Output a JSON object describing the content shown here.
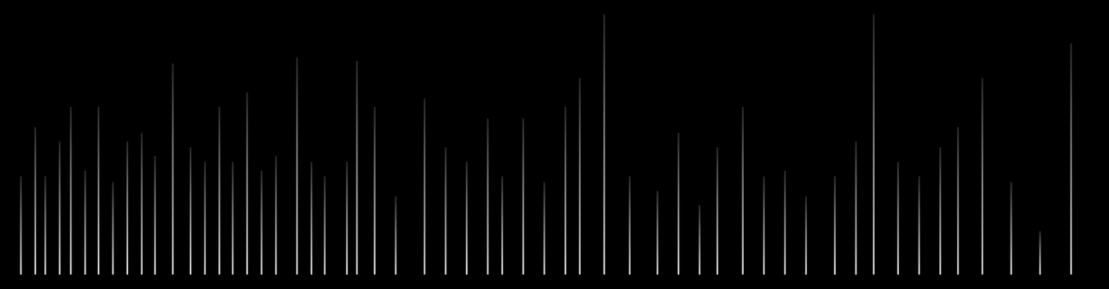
{
  "chart_data": {
    "type": "spectrogram",
    "tick_labels": false,
    "color": "#ffffff",
    "xlim": [
      0,
      100
    ],
    "ylim": [
      0,
      100
    ],
    "x": [
      1.9,
      3.2,
      4.1,
      5.4,
      6.4,
      7.7,
      8.9,
      10.2,
      11.5,
      12.8,
      14.0,
      15.6,
      17.2,
      18.5,
      19.8,
      21.0,
      22.3,
      23.6,
      24.9,
      26.8,
      28.1,
      29.3,
      31.3,
      32.2,
      33.8,
      35.7,
      38.3,
      40.2,
      42.1,
      44.0,
      45.3,
      47.2,
      49.1,
      51.0,
      52.3,
      54.5,
      56.8,
      59.3,
      61.2,
      63.1,
      64.7,
      67.0,
      68.9,
      70.8,
      72.7,
      75.3,
      77.2,
      78.8,
      81.0,
      82.9,
      84.8,
      86.4,
      88.6,
      91.2,
      93.8,
      96.6
    ],
    "values": [
      39,
      56,
      39,
      51,
      63,
      41,
      63,
      37,
      51,
      54,
      46,
      78,
      49,
      44,
      63,
      44,
      68,
      41,
      46,
      80,
      44,
      39,
      44,
      79,
      63,
      32,
      66,
      49,
      44,
      59,
      39,
      59,
      37,
      63,
      73,
      95,
      39,
      34,
      54,
      29,
      49,
      63,
      39,
      41,
      32,
      39,
      51,
      95,
      44,
      39,
      49,
      56,
      73,
      37,
      20,
      85
    ],
    "low": [
      5,
      5,
      5,
      5,
      5,
      5,
      5,
      5,
      5,
      5,
      5,
      5,
      5,
      5,
      5,
      5,
      5,
      5,
      5,
      5,
      5,
      5,
      5,
      5,
      5,
      5,
      5,
      5,
      5,
      5,
      5,
      5,
      5,
      5,
      5,
      5,
      5,
      5,
      5,
      5,
      5,
      5,
      5,
      5,
      5,
      5,
      5,
      5,
      5,
      5,
      5,
      5,
      5,
      5,
      5,
      5
    ]
  }
}
